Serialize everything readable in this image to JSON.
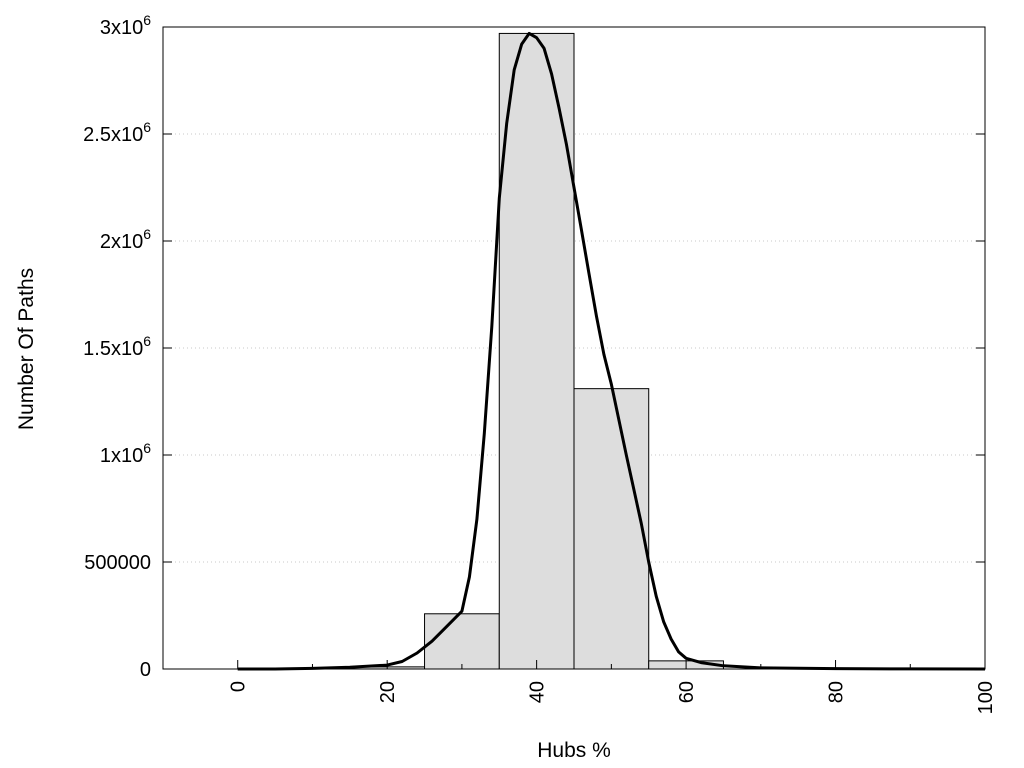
{
  "chart_data": {
    "type": "bar",
    "title": "",
    "xlabel": "Hubs %",
    "ylabel": "Number Of Paths",
    "xlim": [
      -10,
      100
    ],
    "ylim": [
      0,
      3000000
    ],
    "grid": true,
    "legend": "none",
    "colors": {
      "bar_fill": "#dddddd",
      "bar_stroke": "#000000",
      "curve": "#000000",
      "grid": "#c8c8c8"
    },
    "bins": [
      {
        "start": 15,
        "end": 25,
        "value": 10000
      },
      {
        "start": 25,
        "end": 35,
        "value": 258000
      },
      {
        "start": 35,
        "end": 45,
        "value": 2970000
      },
      {
        "start": 45,
        "end": 55,
        "value": 1310000
      },
      {
        "start": 55,
        "end": 65,
        "value": 38000
      }
    ],
    "series": [
      {
        "type": "line",
        "x": [
          0,
          5,
          10,
          15,
          20,
          22,
          24,
          26,
          28,
          30,
          31,
          32,
          33,
          34,
          35,
          36,
          37,
          38,
          39,
          40,
          41,
          42,
          43,
          44,
          45,
          46,
          47,
          48,
          49,
          50,
          52,
          54,
          55,
          56,
          57,
          58,
          59,
          60,
          62,
          65,
          70,
          80,
          90,
          100
        ],
        "values": [
          0,
          0,
          3000,
          8000,
          18000,
          35000,
          75000,
          130000,
          200000,
          270000,
          430000,
          700000,
          1100000,
          1600000,
          2200000,
          2550000,
          2800000,
          2920000,
          2970000,
          2950000,
          2900000,
          2780000,
          2620000,
          2450000,
          2250000,
          2050000,
          1850000,
          1650000,
          1470000,
          1330000,
          1000000,
          680000,
          500000,
          340000,
          220000,
          140000,
          80000,
          50000,
          30000,
          15000,
          5000,
          2000,
          500,
          0
        ]
      }
    ],
    "yticks": [
      {
        "value": 0,
        "label": "0"
      },
      {
        "value": 500000,
        "label": "500000"
      },
      {
        "value": 1000000,
        "label": "1x10",
        "exp": "6"
      },
      {
        "value": 1500000,
        "label": "1.5x10",
        "exp": "6"
      },
      {
        "value": 2000000,
        "label": "2x10",
        "exp": "6"
      },
      {
        "value": 2500000,
        "label": "2.5x10",
        "exp": "6"
      },
      {
        "value": 3000000,
        "label": "3x10",
        "exp": "6"
      }
    ],
    "xticks": [
      {
        "value": 0,
        "label": "0"
      },
      {
        "value": 20,
        "label": "20"
      },
      {
        "value": 40,
        "label": "40"
      },
      {
        "value": 60,
        "label": "60"
      },
      {
        "value": 80,
        "label": "80"
      },
      {
        "value": 100,
        "label": "100"
      }
    ],
    "xminor": [
      10,
      30,
      50,
      70,
      90
    ]
  }
}
